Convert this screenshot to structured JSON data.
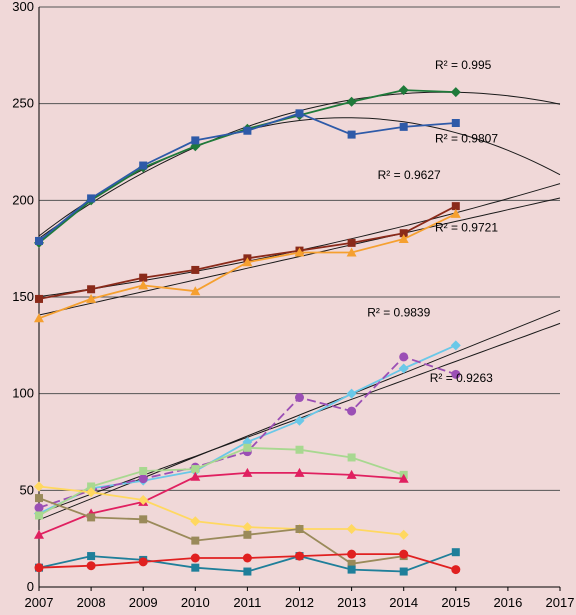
{
  "chart_data": {
    "type": "line",
    "title": "",
    "xlabel": "",
    "ylabel": "",
    "xlim": [
      2007,
      2017
    ],
    "ylim": [
      0,
      300
    ],
    "x_ticks": [
      "2007",
      "2008",
      "2009",
      "2010",
      "2011",
      "2012",
      "2013",
      "2014",
      "2015",
      "2016",
      "2017"
    ],
    "y_ticks": [
      "0",
      "50",
      "100",
      "150",
      "200",
      "250",
      "300"
    ],
    "grid": "horizontal",
    "legend": "none",
    "series": [
      {
        "color": "#1f7a3a",
        "marker": "diamond",
        "x": [
          2007,
          2008,
          2009,
          2010,
          2011,
          2012,
          2013,
          2014,
          2015
        ],
        "y": [
          178,
          200,
          217,
          228,
          237,
          244,
          251,
          257,
          256
        ]
      },
      {
        "color": "#2e5aa8",
        "marker": "square",
        "x": [
          2007,
          2008,
          2009,
          2010,
          2011,
          2012,
          2013,
          2014,
          2015
        ],
        "y": [
          179,
          201,
          218,
          231,
          236,
          245,
          234,
          238,
          240
        ]
      },
      {
        "color": "#8a2a1a",
        "marker": "square",
        "x": [
          2007,
          2008,
          2009,
          2010,
          2011,
          2012,
          2013,
          2014,
          2015
        ],
        "y": [
          149,
          154,
          160,
          164,
          170,
          174,
          178,
          183,
          197
        ]
      },
      {
        "color": "#f5a030",
        "marker": "triangle",
        "x": [
          2007,
          2008,
          2009,
          2010,
          2011,
          2012,
          2013,
          2014,
          2015
        ],
        "y": [
          139,
          149,
          156,
          153,
          168,
          173,
          173,
          180,
          193
        ]
      },
      {
        "color": "#6ac8e8",
        "marker": "diamond",
        "x": [
          2007,
          2008,
          2009,
          2010,
          2011,
          2012,
          2013,
          2014,
          2015
        ],
        "y": [
          38,
          51,
          55,
          60,
          75,
          86,
          100,
          113,
          125
        ]
      },
      {
        "color": "#9b4fb5",
        "marker": "circle",
        "dashed": true,
        "x": [
          2007,
          2008,
          2009,
          2010,
          2011,
          2012,
          2013,
          2014,
          2015
        ],
        "y": [
          41,
          50,
          56,
          62,
          70,
          98,
          91,
          119,
          110
        ]
      },
      {
        "color": "#a8d890",
        "marker": "square",
        "x": [
          2007,
          2008,
          2009,
          2010,
          2011,
          2012,
          2013,
          2014
        ],
        "y": [
          37,
          52,
          60,
          61,
          72,
          71,
          67,
          58
        ]
      },
      {
        "color": "#e02060",
        "marker": "triangle",
        "x": [
          2007,
          2008,
          2009,
          2010,
          2011,
          2012,
          2013,
          2014
        ],
        "y": [
          27,
          38,
          44,
          57,
          59,
          59,
          58,
          56
        ]
      },
      {
        "color": "#ffd860",
        "marker": "diamond",
        "x": [
          2007,
          2008,
          2009,
          2010,
          2011,
          2012,
          2013,
          2014
        ],
        "y": [
          52,
          49,
          45,
          34,
          31,
          30,
          30,
          27
        ]
      },
      {
        "color": "#9a8a5a",
        "marker": "square",
        "x": [
          2007,
          2008,
          2009,
          2010,
          2011,
          2012,
          2013,
          2014
        ],
        "y": [
          46,
          36,
          35,
          24,
          27,
          30,
          12,
          16
        ]
      },
      {
        "color": "#1f7f9a",
        "marker": "square",
        "x": [
          2007,
          2008,
          2009,
          2010,
          2011,
          2012,
          2013,
          2014,
          2015
        ],
        "y": [
          10,
          16,
          14,
          10,
          8,
          16,
          9,
          8,
          18
        ]
      },
      {
        "color": "#e02020",
        "marker": "circle",
        "x": [
          2007,
          2008,
          2009,
          2010,
          2011,
          2012,
          2013,
          2014,
          2015
        ],
        "y": [
          10,
          11,
          13,
          15,
          15,
          16,
          17,
          17,
          9
        ]
      }
    ],
    "trendlines": [
      {
        "kind": "quadratic",
        "fit_of": 0,
        "r2_label": "R² = 0.995"
      },
      {
        "kind": "quadratic",
        "fit_of": 1,
        "r2_label": "R² = 0.9807"
      },
      {
        "kind": "quadratic",
        "fit_of": 2,
        "r2_label": "R² = 0.9627"
      },
      {
        "kind": "linear",
        "fit_of": 3,
        "r2_label": "R² = 0.9721"
      },
      {
        "kind": "linear",
        "fit_of": 4,
        "r2_label": "R² = 0.9839"
      },
      {
        "kind": "linear",
        "fit_of": 5,
        "r2_label": "R² = 0.9263"
      }
    ]
  }
}
